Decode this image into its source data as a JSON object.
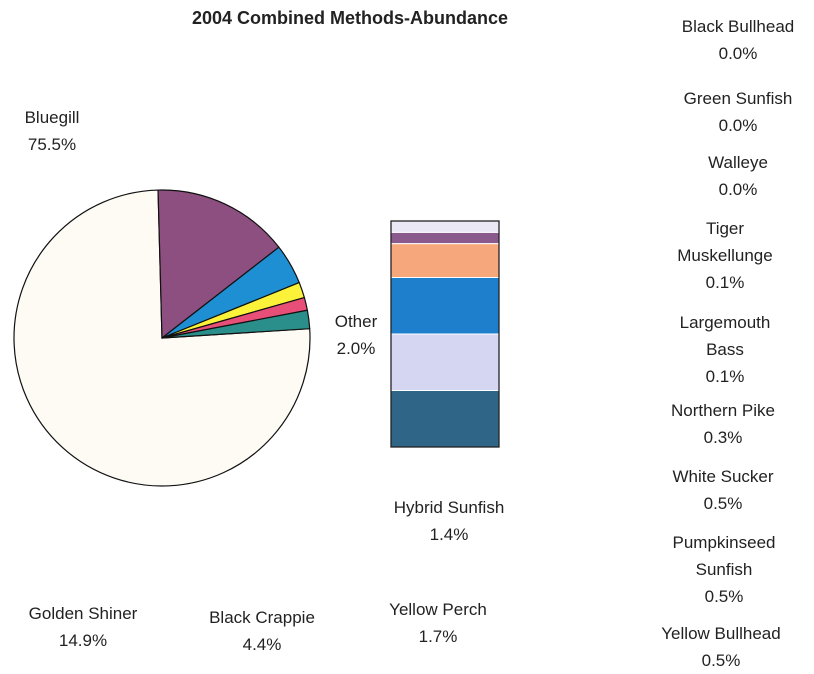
{
  "chart_data": {
    "type": "pie",
    "title": "2004 Combined Methods-Abundance",
    "pie": [
      {
        "name": "Bluegill",
        "value": 75.5,
        "label": "Bluegill",
        "pct": "75.5%",
        "color": "#fdfbf4"
      },
      {
        "name": "Golden Shiner",
        "value": 14.9,
        "label": "Golden Shiner",
        "pct": "14.9%",
        "color": "#8d4f7f"
      },
      {
        "name": "Black Crappie",
        "value": 4.4,
        "label": "Black Crappie",
        "pct": "4.4%",
        "color": "#1e8fd2"
      },
      {
        "name": "Yellow Perch",
        "value": 1.7,
        "label": "Yellow Perch",
        "pct": "1.7%",
        "color": "#fcf23a"
      },
      {
        "name": "Hybrid Sunfish",
        "value": 1.4,
        "label": "Hybrid Sunfish",
        "pct": "1.4%",
        "color": "#e84f78"
      },
      {
        "name": "Other",
        "value": 2.0,
        "label": "Other",
        "pct": "2.0%",
        "color": "#2a8f8a"
      }
    ],
    "other_breakdown": [
      {
        "name": "Yellow Bullhead",
        "value": 0.5,
        "label": "Yellow Bullhead",
        "pct": "0.5%",
        "color": "#2f6688"
      },
      {
        "name": "Pumpkinseed Sunfish",
        "value": 0.5,
        "label": "Pumpkinseed\nSunfish",
        "pct": "0.5%",
        "color": "#d4d6f2"
      },
      {
        "name": "White Sucker",
        "value": 0.5,
        "label": "White Sucker",
        "pct": "0.5%",
        "color": "#1e80cc"
      },
      {
        "name": "Northern Pike",
        "value": 0.3,
        "label": "Northern Pike",
        "pct": "0.3%",
        "color": "#f6a87c"
      },
      {
        "name": "Largemouth Bass",
        "value": 0.1,
        "label": "Largemouth\nBass",
        "pct": "0.1%",
        "color": "#8a5a8c"
      },
      {
        "name": "Tiger Muskellunge",
        "value": 0.1,
        "label": "Tiger\nMuskellunge",
        "pct": "0.1%",
        "color": "#e9e8f4"
      },
      {
        "name": "Walleye",
        "value": 0.0,
        "label": "Walleye",
        "pct": "0.0%",
        "color": "#cfd9ee"
      },
      {
        "name": "Green Sunfish",
        "value": 0.0,
        "label": "Green Sunfish",
        "pct": "0.0%",
        "color": "#ffffff"
      },
      {
        "name": "Black Bullhead",
        "value": 0.0,
        "label": "Black Bullhead",
        "pct": "0.0%",
        "color": "#ffffff"
      }
    ]
  }
}
